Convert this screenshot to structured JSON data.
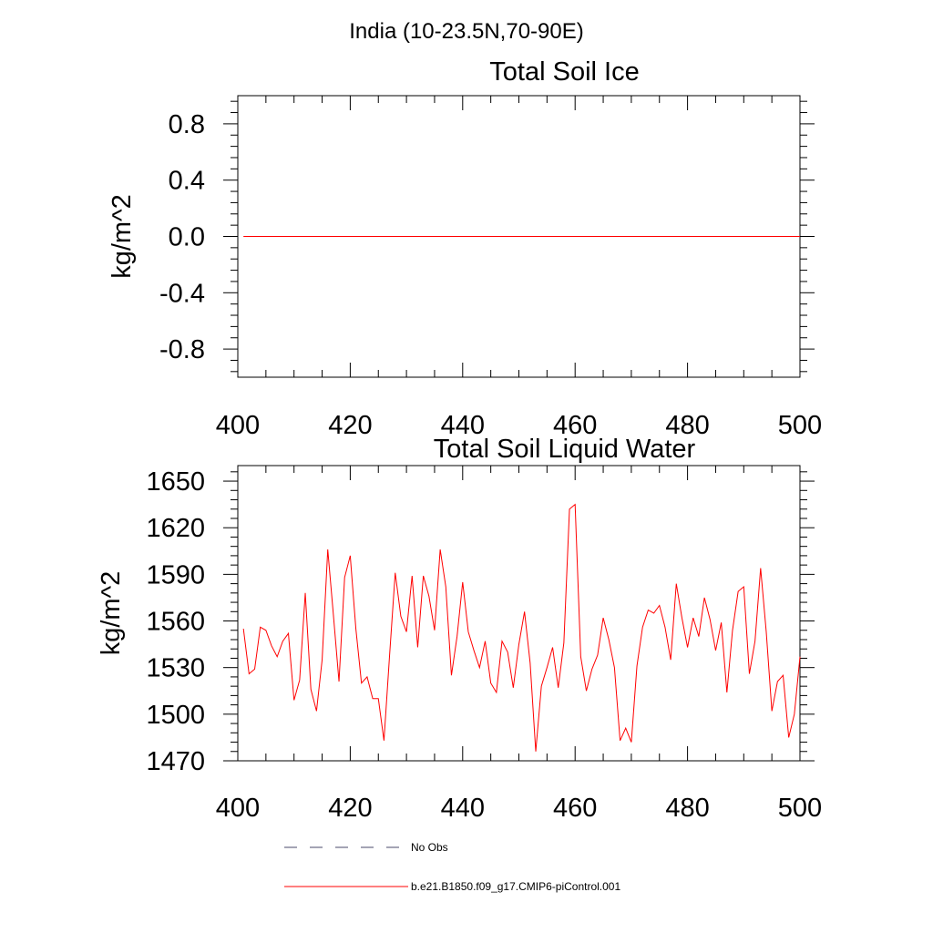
{
  "header": {
    "title": "India (10-23.5N,70-90E)"
  },
  "legend": {
    "items": [
      {
        "label": "No Obs",
        "color": "#4a4a6a",
        "style": "dashed"
      },
      {
        "label": "b.e21.B1850.f09_g17.CMIP6-piControl.001",
        "color": "#ff0000",
        "style": "solid"
      }
    ]
  },
  "chart_data": [
    {
      "type": "line",
      "title": "Total Soil Ice",
      "ylabel": "kg/m^2",
      "xlabel": "",
      "xlim": [
        400,
        500
      ],
      "ylim": [
        -1.0,
        1.0
      ],
      "xticks": [
        "400",
        "420",
        "440",
        "460",
        "480",
        "500"
      ],
      "yticks": [
        "0.8",
        "0.4",
        "0.0",
        "-0.4",
        "-0.8"
      ],
      "ytick_values": [
        0.8,
        0.4,
        0.0,
        -0.4,
        -0.8
      ],
      "grid": false,
      "series": [
        {
          "color": "#ff0000",
          "x_start": 401,
          "x_end": 500,
          "constant_value": 0.0
        }
      ]
    },
    {
      "type": "line",
      "title": "Total Soil Liquid Water",
      "ylabel": "kg/m^2",
      "xlabel": "",
      "xlim": [
        400,
        500
      ],
      "ylim": [
        1470,
        1660
      ],
      "xticks": [
        "400",
        "420",
        "440",
        "460",
        "480",
        "500"
      ],
      "yticks": [
        "1650",
        "1620",
        "1590",
        "1560",
        "1530",
        "1500",
        "1470"
      ],
      "ytick_values": [
        1650,
        1620,
        1590,
        1560,
        1530,
        1500,
        1470
      ],
      "grid": false,
      "series": [
        {
          "color": "#ff0000",
          "x_start": 401,
          "values": [
            1555,
            1526,
            1529,
            1556,
            1554,
            1544,
            1537,
            1547,
            1552,
            1509,
            1522,
            1578,
            1516,
            1502,
            1535,
            1606,
            1564,
            1521,
            1588,
            1602,
            1555,
            1520,
            1524,
            1510,
            1510,
            1483,
            1538,
            1591,
            1563,
            1553,
            1589,
            1543,
            1589,
            1576,
            1554,
            1606,
            1582,
            1525,
            1550,
            1585,
            1553,
            1541,
            1530,
            1547,
            1520,
            1514,
            1547,
            1540,
            1517,
            1545,
            1566,
            1533,
            1476,
            1518,
            1530,
            1543,
            1517,
            1546,
            1632,
            1635,
            1537,
            1515,
            1529,
            1538,
            1562,
            1548,
            1530,
            1483,
            1491,
            1482,
            1531,
            1556,
            1567,
            1565,
            1570,
            1556,
            1535,
            1584,
            1562,
            1543,
            1562,
            1550,
            1575,
            1561,
            1541,
            1559,
            1514,
            1554,
            1579,
            1582,
            1526,
            1547,
            1594,
            1553,
            1502,
            1521,
            1525,
            1485,
            1500,
            1537
          ]
        }
      ]
    }
  ]
}
